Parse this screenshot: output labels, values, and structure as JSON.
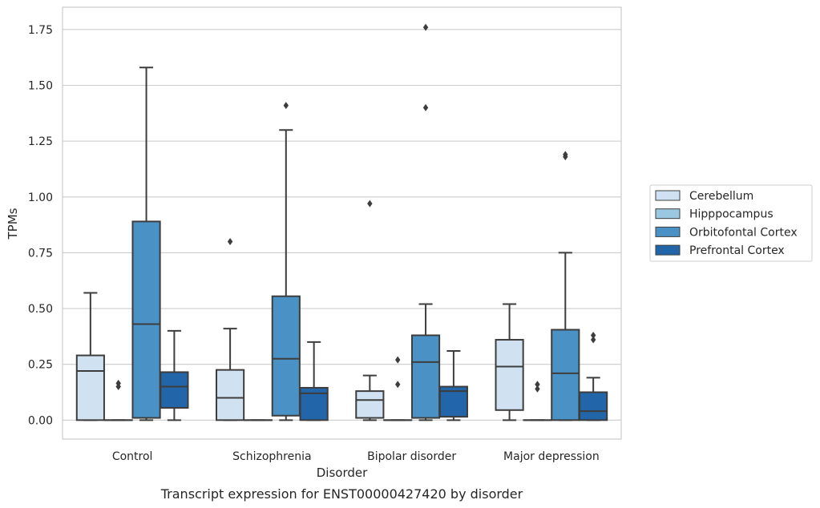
{
  "chart_data": {
    "type": "box",
    "caption": "Transcript expression for ENST00000427420 by disorder",
    "xlabel": "Disorder",
    "ylabel": "TPMs",
    "ylim": [
      -0.085,
      1.85
    ],
    "yticks": [
      0.0,
      0.25,
      0.5,
      0.75,
      1.0,
      1.25,
      1.5,
      1.75
    ],
    "ytick_labels": [
      "0.00",
      "0.25",
      "0.50",
      "0.75",
      "1.00",
      "1.25",
      "1.50",
      "1.75"
    ],
    "grid": "horizontal",
    "legend_position": "right",
    "categories": [
      "Control",
      "Schizophrenia",
      "Bipolar disorder",
      "Major depression"
    ],
    "series": [
      {
        "name": "Cerebellum",
        "color": "#d0e2f2",
        "boxes": [
          {
            "min": 0.0,
            "q1": 0.0,
            "median": 0.22,
            "q3": 0.29,
            "max": 0.57,
            "outliers": []
          },
          {
            "min": 0.0,
            "q1": 0.0,
            "median": 0.1,
            "q3": 0.225,
            "max": 0.41,
            "outliers": [
              0.8
            ]
          },
          {
            "min": 0.0,
            "q1": 0.01,
            "median": 0.09,
            "q3": 0.13,
            "max": 0.2,
            "outliers": [
              0.97
            ]
          },
          {
            "min": 0.0,
            "q1": 0.045,
            "median": 0.24,
            "q3": 0.36,
            "max": 0.52,
            "outliers": []
          }
        ]
      },
      {
        "name": "Hipppocampus",
        "color": "#9ac8e0",
        "boxes": [
          {
            "min": 0.0,
            "q1": 0.0,
            "median": 0.0,
            "q3": 0.0,
            "max": 0.0,
            "outliers": [
              0.15,
              0.165
            ]
          },
          {
            "min": 0.0,
            "q1": 0.0,
            "median": 0.0,
            "q3": 0.0,
            "max": 0.0,
            "outliers": []
          },
          {
            "min": 0.0,
            "q1": 0.0,
            "median": 0.0,
            "q3": 0.0,
            "max": 0.0,
            "outliers": [
              0.16,
              0.27
            ]
          },
          {
            "min": 0.0,
            "q1": 0.0,
            "median": 0.0,
            "q3": 0.0,
            "max": 0.0,
            "outliers": [
              0.14,
              0.16
            ]
          }
        ]
      },
      {
        "name": "Orbitofontal Cortex",
        "color": "#4a92c6",
        "boxes": [
          {
            "min": 0.0,
            "q1": 0.01,
            "median": 0.43,
            "q3": 0.89,
            "max": 1.58,
            "outliers": []
          },
          {
            "min": 0.0,
            "q1": 0.02,
            "median": 0.275,
            "q3": 0.555,
            "max": 1.3,
            "outliers": [
              1.41
            ]
          },
          {
            "min": 0.0,
            "q1": 0.01,
            "median": 0.26,
            "q3": 0.38,
            "max": 0.52,
            "outliers": [
              1.4,
              1.76
            ]
          },
          {
            "min": 0.0,
            "q1": 0.0,
            "median": 0.21,
            "q3": 0.405,
            "max": 0.75,
            "outliers": [
              1.18,
              1.19
            ]
          }
        ]
      },
      {
        "name": "Prefrontal Cortex",
        "color": "#2365a9",
        "boxes": [
          {
            "min": 0.0,
            "q1": 0.055,
            "median": 0.15,
            "q3": 0.215,
            "max": 0.4,
            "outliers": []
          },
          {
            "min": 0.0,
            "q1": 0.0,
            "median": 0.12,
            "q3": 0.145,
            "max": 0.35,
            "outliers": []
          },
          {
            "min": 0.0,
            "q1": 0.015,
            "median": 0.13,
            "q3": 0.15,
            "max": 0.31,
            "outliers": []
          },
          {
            "min": 0.0,
            "q1": 0.0,
            "median": 0.04,
            "q3": 0.125,
            "max": 0.19,
            "outliers": [
              0.36,
              0.38
            ]
          }
        ]
      }
    ]
  }
}
